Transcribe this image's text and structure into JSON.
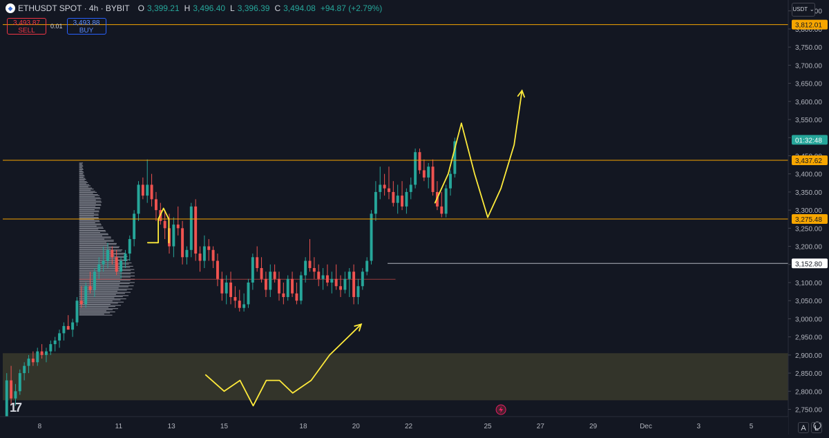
{
  "header": {
    "symbol": "ETHUSDT SPOT · 4h · BYBIT",
    "o_label": "O",
    "o_value": "3,399.21",
    "h_label": "H",
    "h_value": "3,496.40",
    "l_label": "L",
    "l_value": "3,396.39",
    "c_label": "C",
    "c_value": "3,494.08",
    "change": "+94.87 (+2.79%)"
  },
  "trade": {
    "sell_price": "3,493.87",
    "sell_label": "SELL",
    "spread": "0.01",
    "buy_price": "3,493.88",
    "buy_label": "BUY"
  },
  "currency_label": "USDT",
  "currency_chevron": "chevron-down-icon",
  "bottom_buttons": {
    "auto": "A",
    "log": "L"
  },
  "colors": {
    "background": "#131722",
    "up": "#26a69a",
    "down": "#ef5350",
    "level_line": "#f7a600",
    "drawing": "#ffeb3b",
    "zone": "#3a3a2c"
  },
  "chart_data": {
    "type": "candlestick",
    "y_axis": {
      "ticks": [
        "2,750.00",
        "2,800.00",
        "2,850.00",
        "2,900.00",
        "2,950.00",
        "3,000.00",
        "3,050.00",
        "3,100.00",
        "3,150.00",
        "3,200.00",
        "3,250.00",
        "3,300.00",
        "3,350.00",
        "3,400.00",
        "3,450.00",
        "3,500.00",
        "3,550.00",
        "3,600.00",
        "3,650.00",
        "3,700.00",
        "3,750.00",
        "3,800.00",
        "3,850.00"
      ],
      "tick_values": [
        2750,
        2800,
        2850,
        2900,
        2950,
        3000,
        3050,
        3100,
        3150,
        3200,
        3250,
        3300,
        3350,
        3400,
        3450,
        3500,
        3550,
        3600,
        3650,
        3700,
        3750,
        3800,
        3850
      ],
      "range": [
        2730,
        3880
      ]
    },
    "x_axis": {
      "labels": [
        "8",
        "11",
        "13",
        "15",
        "18",
        "20",
        "22",
        "25",
        "27",
        "29",
        "Dec",
        "3",
        "5"
      ],
      "label_days": [
        8,
        11,
        13,
        15,
        18,
        20,
        22,
        25,
        27,
        29,
        31,
        33,
        35
      ],
      "range_days": [
        6.6,
        36.4
      ]
    },
    "horizontal_levels": [
      {
        "value": 3812.01,
        "label": "3,812.01"
      },
      {
        "value": 3437.62,
        "label": "3,437.62"
      },
      {
        "value": 3275.48,
        "label": "3,275.48"
      }
    ],
    "ray_level": {
      "value": 3152.8,
      "label": "3,152.80",
      "from_day": 21.2
    },
    "poc_level": {
      "value": 3109,
      "from_day": 9.5,
      "to_day": 21.5
    },
    "current_price": {
      "value": 3494.08,
      "countdown": "01:32:48"
    },
    "zone": {
      "from": 2775,
      "to": 2905
    },
    "volume_profile": {
      "from": 3010,
      "to": 3430,
      "peak": 3118,
      "max_width_days": 2.2,
      "start_day": 9.5
    },
    "candles_4h_start_day": 6.75,
    "candles": [
      [
        2720,
        2850,
        2700,
        2830
      ],
      [
        2830,
        2870,
        2760,
        2780
      ],
      [
        2780,
        2820,
        2760,
        2800
      ],
      [
        2800,
        2860,
        2790,
        2850
      ],
      [
        2850,
        2880,
        2830,
        2870
      ],
      [
        2870,
        2900,
        2850,
        2890
      ],
      [
        2890,
        2910,
        2870,
        2880
      ],
      [
        2880,
        2920,
        2870,
        2910
      ],
      [
        2910,
        2930,
        2890,
        2900
      ],
      [
        2900,
        2920,
        2880,
        2910
      ],
      [
        2910,
        2940,
        2900,
        2930
      ],
      [
        2930,
        2950,
        2910,
        2940
      ],
      [
        2940,
        2970,
        2920,
        2960
      ],
      [
        2960,
        2990,
        2940,
        2980
      ],
      [
        2980,
        3010,
        2970,
        2970
      ],
      [
        2970,
        3000,
        2950,
        2990
      ],
      [
        2990,
        3060,
        2980,
        3050
      ],
      [
        3050,
        3090,
        3030,
        3040
      ],
      [
        3040,
        3100,
        3030,
        3090
      ],
      [
        3090,
        3130,
        3070,
        3080
      ],
      [
        3080,
        3140,
        3060,
        3130
      ],
      [
        3130,
        3170,
        3110,
        3150
      ],
      [
        3150,
        3200,
        3130,
        3160
      ],
      [
        3160,
        3210,
        3140,
        3190
      ],
      [
        3190,
        3200,
        3150,
        3170
      ],
      [
        3170,
        3190,
        3120,
        3130
      ],
      [
        3130,
        3170,
        3110,
        3160
      ],
      [
        3160,
        3190,
        3140,
        3180
      ],
      [
        3180,
        3230,
        3160,
        3220
      ],
      [
        3220,
        3300,
        3200,
        3290
      ],
      [
        3290,
        3380,
        3270,
        3370
      ],
      [
        3370,
        3390,
        3330,
        3340
      ],
      [
        3340,
        3440,
        3320,
        3370
      ],
      [
        3370,
        3400,
        3310,
        3330
      ],
      [
        3330,
        3350,
        3270,
        3300
      ],
      [
        3300,
        3320,
        3260,
        3270
      ],
      [
        3270,
        3300,
        3220,
        3250
      ],
      [
        3250,
        3290,
        3180,
        3200
      ],
      [
        3200,
        3280,
        3170,
        3260
      ],
      [
        3260,
        3310,
        3230,
        3250
      ],
      [
        3250,
        3270,
        3150,
        3170
      ],
      [
        3170,
        3200,
        3150,
        3190
      ],
      [
        3190,
        3320,
        3170,
        3310
      ],
      [
        3310,
        3330,
        3160,
        3180
      ],
      [
        3180,
        3200,
        3130,
        3160
      ],
      [
        3160,
        3230,
        3140,
        3200
      ],
      [
        3200,
        3220,
        3160,
        3190
      ],
      [
        3190,
        3200,
        3140,
        3160
      ],
      [
        3160,
        3180,
        3090,
        3110
      ],
      [
        3110,
        3130,
        3050,
        3070
      ],
      [
        3070,
        3120,
        3040,
        3100
      ],
      [
        3100,
        3130,
        3040,
        3060
      ],
      [
        3060,
        3090,
        3030,
        3050
      ],
      [
        3050,
        3080,
        3020,
        3030
      ],
      [
        3030,
        3070,
        3020,
        3040
      ],
      [
        3040,
        3110,
        3030,
        3100
      ],
      [
        3100,
        3180,
        3080,
        3170
      ],
      [
        3170,
        3200,
        3130,
        3140
      ],
      [
        3140,
        3170,
        3100,
        3110
      ],
      [
        3110,
        3130,
        3060,
        3080
      ],
      [
        3080,
        3150,
        3060,
        3130
      ],
      [
        3130,
        3150,
        3100,
        3110
      ],
      [
        3110,
        3130,
        3050,
        3070
      ],
      [
        3070,
        3100,
        3040,
        3060
      ],
      [
        3060,
        3120,
        3050,
        3110
      ],
      [
        3110,
        3130,
        3060,
        3070
      ],
      [
        3070,
        3100,
        3040,
        3050
      ],
      [
        3050,
        3130,
        3040,
        3120
      ],
      [
        3120,
        3170,
        3100,
        3160
      ],
      [
        3160,
        3220,
        3130,
        3140
      ],
      [
        3140,
        3170,
        3110,
        3130
      ],
      [
        3130,
        3150,
        3090,
        3110
      ],
      [
        3110,
        3140,
        3080,
        3120
      ],
      [
        3120,
        3150,
        3090,
        3100
      ],
      [
        3100,
        3130,
        3070,
        3110
      ],
      [
        3110,
        3150,
        3080,
        3090
      ],
      [
        3090,
        3120,
        3060,
        3080
      ],
      [
        3080,
        3130,
        3070,
        3110
      ],
      [
        3110,
        3140,
        3060,
        3130
      ],
      [
        3130,
        3150,
        3040,
        3060
      ],
      [
        3060,
        3110,
        3040,
        3090
      ],
      [
        3090,
        3140,
        3080,
        3130
      ],
      [
        3130,
        3170,
        3120,
        3160
      ],
      [
        3160,
        3300,
        3150,
        3290
      ],
      [
        3290,
        3380,
        3270,
        3350
      ],
      [
        3350,
        3420,
        3330,
        3370
      ],
      [
        3370,
        3400,
        3340,
        3360
      ],
      [
        3360,
        3420,
        3330,
        3350
      ],
      [
        3350,
        3380,
        3310,
        3320
      ],
      [
        3320,
        3370,
        3290,
        3340
      ],
      [
        3340,
        3380,
        3300,
        3310
      ],
      [
        3310,
        3360,
        3290,
        3350
      ],
      [
        3350,
        3390,
        3330,
        3370
      ],
      [
        3370,
        3470,
        3360,
        3460
      ],
      [
        3460,
        3470,
        3400,
        3410
      ],
      [
        3410,
        3440,
        3380,
        3390
      ],
      [
        3390,
        3430,
        3360,
        3420
      ],
      [
        3420,
        3440,
        3340,
        3350
      ],
      [
        3350,
        3380,
        3300,
        3310
      ],
      [
        3310,
        3350,
        3280,
        3290
      ],
      [
        3290,
        3370,
        3280,
        3360
      ],
      [
        3360,
        3410,
        3340,
        3400
      ],
      [
        3400,
        3500,
        3390,
        3490
      ]
    ]
  }
}
